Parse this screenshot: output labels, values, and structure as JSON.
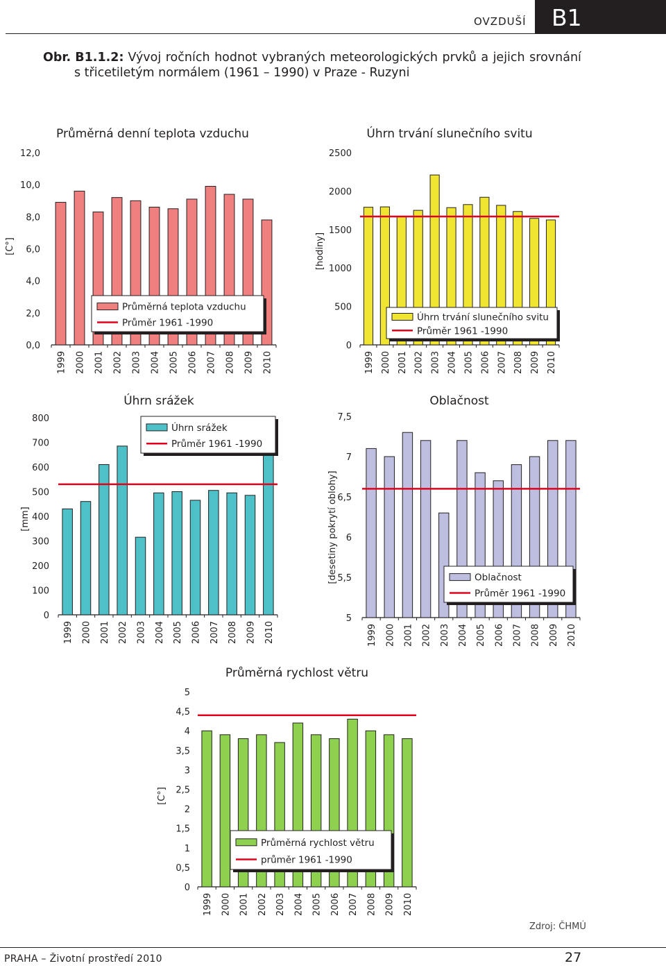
{
  "header": {
    "section": "OVZDUŠÍ",
    "badge": "B1"
  },
  "figure": {
    "number": "Obr. B1.1.2:",
    "title_line1_words": [
      "Vývoj",
      "ročních",
      "hodnot",
      "vybraných",
      "meteorologických",
      "prvků",
      "a",
      "jejich",
      "srovnání"
    ],
    "title_line2": "s třicetiletým normálem (1961 – 1990) v Praze - Ruzyni"
  },
  "footer": {
    "left": "PRAHA – Životní prostředí 2010",
    "page": "27",
    "source": "Zdroj: ČHMÚ"
  },
  "colors": {
    "normal_line": "#e3001b",
    "axis": "#231f20",
    "shadow": "#231f20"
  },
  "chart_data": [
    {
      "id": "temp",
      "type": "bar",
      "title": "Průměrná denní teplota vzduchu",
      "ylabel": "[C°]",
      "ylim": [
        0,
        12
      ],
      "yticks": [
        "0,0",
        "2,0",
        "4,0",
        "6,0",
        "8,0",
        "10,0",
        "12,0"
      ],
      "categories": [
        "1999",
        "2000",
        "2001",
        "2002",
        "2003",
        "2004",
        "2005",
        "2006",
        "2007",
        "2008",
        "2009",
        "2010"
      ],
      "series": [
        {
          "name": "Průměrná teplota vzduchu",
          "color": "#f08080",
          "values": [
            8.9,
            9.6,
            8.3,
            9.2,
            9.0,
            8.6,
            8.5,
            9.1,
            9.9,
            9.4,
            9.1,
            7.8
          ]
        }
      ],
      "normal": {
        "name": "Průměr 1961 -1990",
        "value": null
      },
      "legend_position": "bottom-center"
    },
    {
      "id": "sun",
      "type": "bar",
      "title": "Úhrn trvání slunečního svitu",
      "ylabel": "[hodiny]",
      "ylim": [
        0,
        2500
      ],
      "yticks": [
        "0",
        "500",
        "1000",
        "1500",
        "2000",
        "2500"
      ],
      "categories": [
        "1999",
        "2000",
        "2001",
        "2002",
        "2003",
        "2004",
        "2005",
        "2006",
        "2007",
        "2008",
        "2009",
        "2010"
      ],
      "series": [
        {
          "name": "Úhrn trvání slunečního svitu",
          "color": "#f0e632",
          "values": [
            1790,
            1795,
            1670,
            1750,
            2210,
            1785,
            1825,
            1920,
            1815,
            1735,
            1645,
            1625
          ]
        }
      ],
      "normal": {
        "name": "Průměr 1961 -1990",
        "value": 1670
      },
      "legend_position": "bottom-right"
    },
    {
      "id": "precip",
      "type": "bar",
      "title": "Úhrn srážek",
      "ylabel": "[mm]",
      "ylim": [
        0,
        800
      ],
      "yticks": [
        "0",
        "100",
        "200",
        "300",
        "400",
        "500",
        "600",
        "700",
        "800"
      ],
      "categories": [
        "1999",
        "2000",
        "2001",
        "2002",
        "2003",
        "2004",
        "2005",
        "2006",
        "2007",
        "2008",
        "2009",
        "2010"
      ],
      "series": [
        {
          "name": "Úhrn srážek",
          "color": "#4ec0c8",
          "values": [
            430,
            460,
            610,
            685,
            315,
            495,
            500,
            465,
            505,
            495,
            485,
            655
          ]
        }
      ],
      "normal": {
        "name": "Průměr 1961 -1990",
        "value": 530
      },
      "legend_position": "top-right"
    },
    {
      "id": "cloud",
      "type": "bar",
      "title": "Oblačnost",
      "ylabel": "[desetiny pokrytí oblohy]",
      "ylim": [
        5,
        7.5
      ],
      "yticks": [
        "5",
        "5,5",
        "6",
        "6,5",
        "7",
        "7,5"
      ],
      "categories": [
        "1999",
        "2000",
        "2001",
        "2002",
        "2003",
        "2004",
        "2005",
        "2006",
        "2007",
        "2008",
        "2009",
        "2010"
      ],
      "series": [
        {
          "name": "Oblačnost",
          "color": "#bebee0",
          "values": [
            7.1,
            7.0,
            7.3,
            7.2,
            6.3,
            7.2,
            6.8,
            6.7,
            6.9,
            7.0,
            7.2,
            7.2
          ]
        }
      ],
      "normal": {
        "name": "Průměr 1961 -1990",
        "value": 6.6
      },
      "legend_position": "bottom-right"
    },
    {
      "id": "wind",
      "type": "bar",
      "title": "Průměrná rychlost větru",
      "ylabel": "[C°]",
      "ylim": [
        0,
        5
      ],
      "yticks": [
        "0",
        "0,5",
        "1",
        "1,5",
        "2",
        "2,5",
        "3",
        "3,5",
        "4",
        "4,5",
        "5"
      ],
      "categories": [
        "1999",
        "2000",
        "2001",
        "2002",
        "2003",
        "2004",
        "2005",
        "2006",
        "2007",
        "2008",
        "2009",
        "2010"
      ],
      "series": [
        {
          "name": "Průměrná rychlost větru",
          "color": "#8ed14f",
          "values": [
            4.0,
            3.9,
            3.8,
            3.9,
            3.7,
            4.2,
            3.9,
            3.8,
            4.3,
            4.0,
            3.9,
            3.8
          ]
        }
      ],
      "normal": {
        "name": "průměr 1961 -1990",
        "value": 4.4
      },
      "legend_position": "bottom-center"
    }
  ]
}
